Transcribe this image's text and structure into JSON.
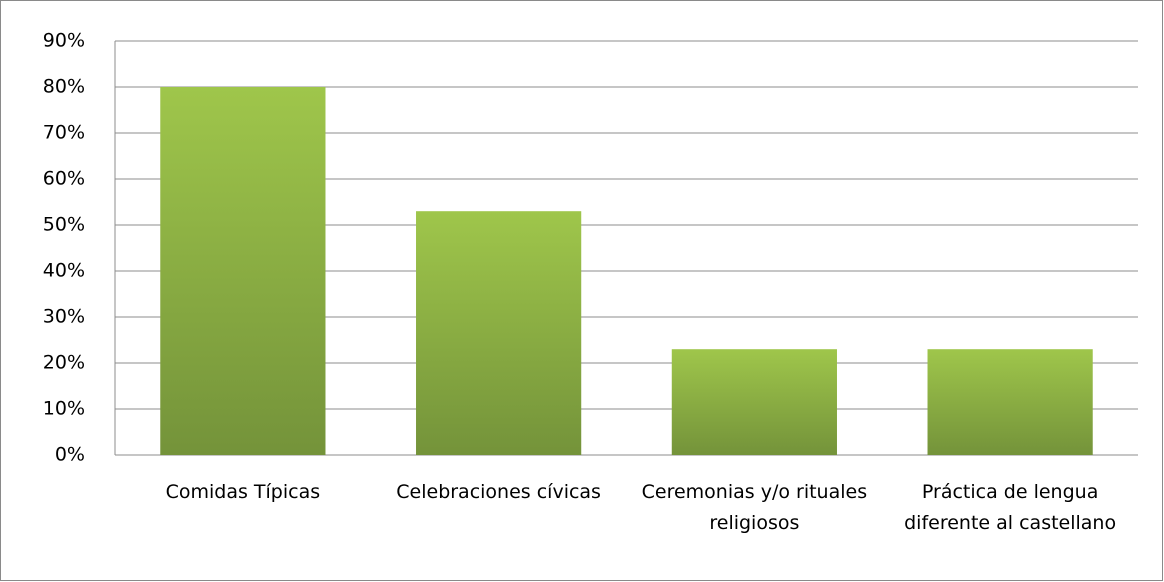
{
  "chart_data": {
    "type": "bar",
    "categories": [
      "Comidas Típicas",
      "Celebraciones cívicas",
      "Ceremonias y/o rituales religiosos",
      "Práctica de lengua diferente al castellano"
    ],
    "values": [
      80,
      53,
      23,
      23
    ],
    "color": "#8db443",
    "ylim": [
      0,
      90
    ],
    "yticks": [
      {
        "value": 0,
        "label": "0%"
      },
      {
        "value": 10,
        "label": "10%"
      },
      {
        "value": 20,
        "label": "20%"
      },
      {
        "value": 30,
        "label": "30%"
      },
      {
        "value": 40,
        "label": "40%"
      },
      {
        "value": 50,
        "label": "50%"
      },
      {
        "value": 60,
        "label": "60%"
      },
      {
        "value": 70,
        "label": "70%"
      },
      {
        "value": 80,
        "label": "80%"
      },
      {
        "value": 90,
        "label": "90%"
      }
    ],
    "grid": true
  }
}
